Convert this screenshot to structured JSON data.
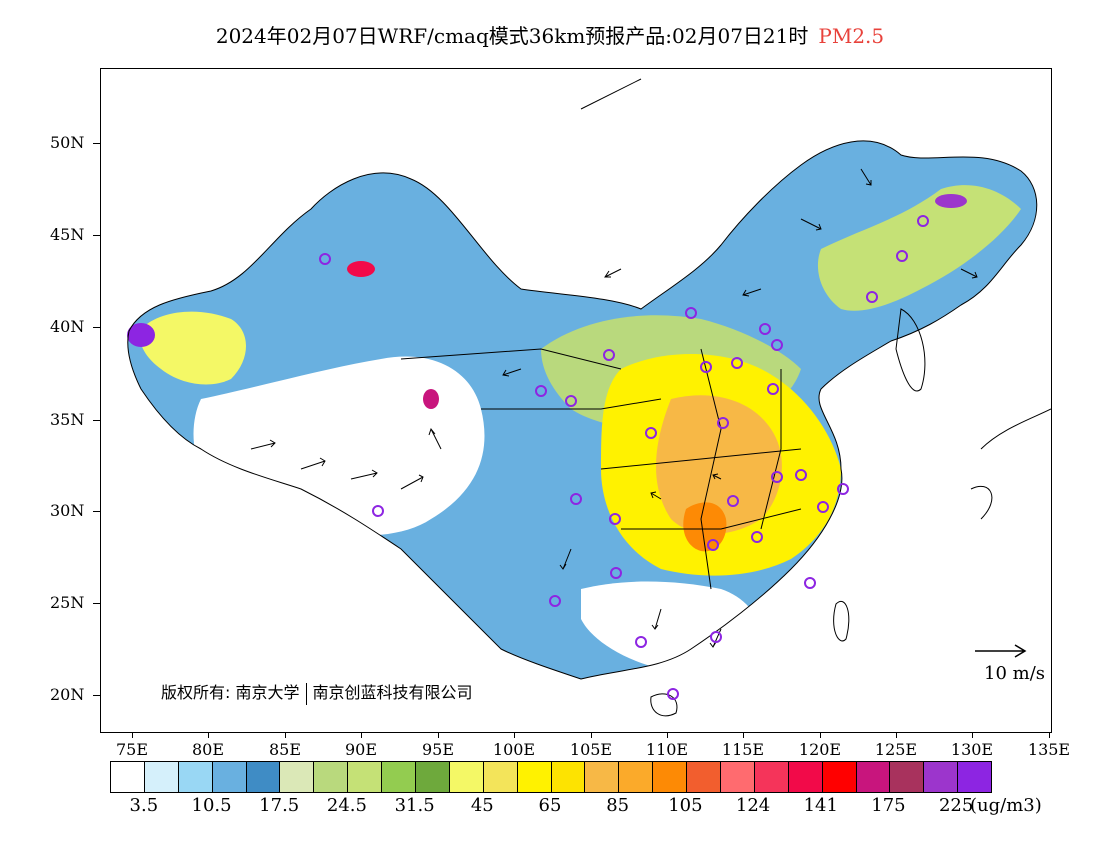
{
  "title": {
    "main": "2024年02月07日WRF/cmaq模式36km预报产品:02月07日21时",
    "species": "PM2.5",
    "species_color": "#e8423b"
  },
  "axes": {
    "lat_labels": [
      "50N",
      "45N",
      "40N",
      "35N",
      "30N",
      "25N",
      "20N"
    ],
    "lon_labels": [
      "75E",
      "80E",
      "85E",
      "90E",
      "95E",
      "100E",
      "105E",
      "110E",
      "115E",
      "120E",
      "125E",
      "130E",
      "135E"
    ]
  },
  "copyright": {
    "prefix": "版权所有:",
    "org1": "南京大学",
    "org2": "南京创蓝科技有限公司"
  },
  "wind_scale": {
    "label": "10 m/s"
  },
  "legend": {
    "colors": [
      "#ffffff",
      "#d5f0fb",
      "#99d7f4",
      "#69b0e0",
      "#3f8cc5",
      "#dbe8b7",
      "#b9d97d",
      "#c5e176",
      "#93cc50",
      "#6ea93c",
      "#f4f866",
      "#f3e45a",
      "#fff200",
      "#fde301",
      "#f7b846",
      "#fbaa2a",
      "#fd8a05",
      "#f25e2e",
      "#ff6b6f",
      "#f5345a",
      "#f20a49",
      "#ff0000",
      "#c8157d",
      "#a8325d",
      "#9c35cc",
      "#8d25e2"
    ],
    "labels": [
      "3.5",
      "10.5",
      "17.5",
      "24.5",
      "31.5",
      "45",
      "65",
      "85",
      "105",
      "124",
      "141",
      "175",
      "225"
    ],
    "unit": "(ug/m3)"
  }
}
